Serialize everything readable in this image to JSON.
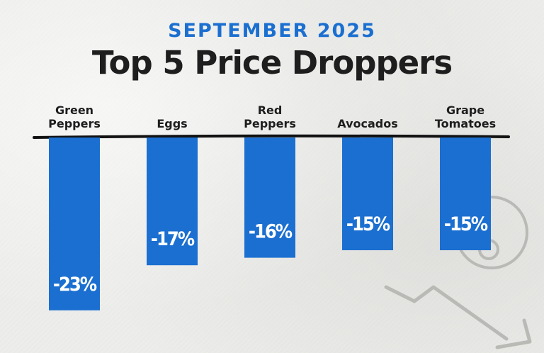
{
  "header": {
    "kicker": "SEPTEMBER 2025",
    "title": "Top 5 Price Droppers"
  },
  "colors": {
    "accent": "#1b6fd0",
    "title": "#1e1e1e",
    "baseline": "#111111",
    "decoration": "#b9b9b6"
  },
  "decoration": {
    "icons": [
      "price-tag-icon",
      "down-trend-arrow-icon"
    ]
  },
  "chart_data": {
    "type": "bar",
    "categories": [
      "Green\nPeppers",
      "Eggs",
      "Red\nPeppers",
      "Avocados",
      "Grape\nTomatoes"
    ],
    "values": [
      -23,
      -17,
      -16,
      -15,
      -15
    ],
    "value_labels": [
      "-23%",
      "-17%",
      "-16%",
      "-15%",
      "-15%"
    ],
    "title": "Top 5 Price Droppers",
    "subtitle": "SEPTEMBER 2025",
    "category_axis_position": "top",
    "ylim": [
      -23,
      0
    ],
    "grid": false,
    "legend": "none"
  }
}
